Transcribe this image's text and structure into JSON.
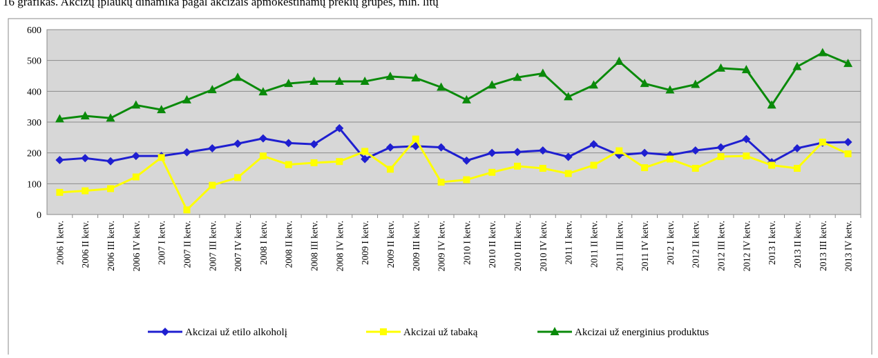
{
  "chart_data": {
    "type": "line",
    "title": "16 grafikas. Akcizų įplaukų dinamika pagal akcizais apmokestinamų prekių grupes, mln. litų",
    "categories": [
      "2006 I ketv.",
      "2006 II ketv.",
      "2006 III ketv.",
      "2006 IV ketv.",
      "2007 I ketv.",
      "2007 II ketv.",
      "2007 III ketv.",
      "2007 IV ketv.",
      "2008 I ketv.",
      "2008 II ketv.",
      "2008 III ketv.",
      "2008 IV ketv.",
      "2009 I ketv.",
      "2009 II ketv.",
      "2009 III ketv.",
      "2009 IV ketv.",
      "2010 I ketv.",
      "2010 II ketv.",
      "2010 III ketv.",
      "2010 IV ketv.",
      "2011 I ketv.",
      "2011 II ketv.",
      "2011 III ketv.",
      "2011 IV ketv.",
      "2012 I ketv.",
      "2012 II ketv.",
      "2012 III ketv.",
      "2012 IV ketv.",
      "2013 I ketv.",
      "2013 II ketv.",
      "2013 III ketv.",
      "2013 IV ketv."
    ],
    "series": [
      {
        "name": "Akcizai už etilo alkoholį",
        "color": "#1f1fd0",
        "marker": "diamond",
        "values": [
          177,
          183,
          173,
          190,
          190,
          202,
          215,
          230,
          247,
          232,
          228,
          280,
          180,
          218,
          222,
          218,
          175,
          200,
          203,
          208,
          187,
          228,
          193,
          200,
          193,
          208,
          218,
          245,
          170,
          215,
          233,
          235
        ]
      },
      {
        "name": "Akcizai už tabaką",
        "color": "#ffff00",
        "marker": "square",
        "values": [
          72,
          77,
          84,
          122,
          185,
          15,
          95,
          120,
          190,
          162,
          168,
          172,
          205,
          147,
          245,
          105,
          113,
          137,
          157,
          150,
          133,
          160,
          207,
          152,
          180,
          150,
          188,
          190,
          160,
          150,
          235,
          197
        ]
      },
      {
        "name": "Akcizai už energinius produktus",
        "color": "#0a8a0a",
        "marker": "triangle",
        "values": [
          310,
          320,
          313,
          355,
          340,
          372,
          405,
          445,
          398,
          425,
          432,
          432,
          432,
          448,
          443,
          413,
          372,
          420,
          445,
          458,
          382,
          420,
          497,
          425,
          404,
          422,
          475,
          470,
          355,
          480,
          525,
          490
        ]
      }
    ],
    "ylim": [
      0,
      600
    ],
    "yticks": [
      0,
      100,
      200,
      300,
      400,
      500,
      600
    ],
    "grid": true,
    "legend": "bottom"
  }
}
